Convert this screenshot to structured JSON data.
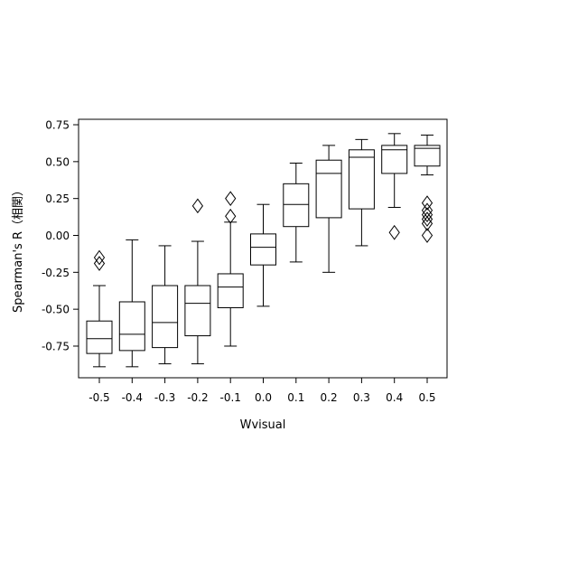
{
  "chart_data": {
    "type": "boxplot",
    "title": "",
    "xlabel": "Wvisual",
    "ylabel": "Spearman's R（相関）",
    "ylim": [
      -0.96,
      0.78
    ],
    "yticks": [
      {
        "value": 0.75,
        "label": "0.75"
      },
      {
        "value": 0.5,
        "label": "0.50"
      },
      {
        "value": 0.25,
        "label": "0.25"
      },
      {
        "value": 0.0,
        "label": "0.00"
      },
      {
        "value": -0.25,
        "label": "-0.25"
      },
      {
        "value": -0.5,
        "label": "-0.50"
      },
      {
        "value": -0.75,
        "label": "-0.75"
      }
    ],
    "categories": [
      "-0.5",
      "-0.4",
      "-0.3",
      "-0.2",
      "-0.1",
      "0.0",
      "0.1",
      "0.2",
      "0.3",
      "0.4",
      "0.5"
    ],
    "boxes": [
      {
        "category": "-0.5",
        "whisker_low": -0.89,
        "q1": -0.8,
        "median": -0.7,
        "q3": -0.58,
        "whisker_high": -0.34,
        "outliers": [
          -0.15,
          -0.19
        ]
      },
      {
        "category": "-0.4",
        "whisker_low": -0.89,
        "q1": -0.78,
        "median": -0.67,
        "q3": -0.45,
        "whisker_high": -0.03,
        "outliers": []
      },
      {
        "category": "-0.3",
        "whisker_low": -0.87,
        "q1": -0.76,
        "median": -0.59,
        "q3": -0.34,
        "whisker_high": -0.07,
        "outliers": []
      },
      {
        "category": "-0.2",
        "whisker_low": -0.87,
        "q1": -0.68,
        "median": -0.46,
        "q3": -0.34,
        "whisker_high": -0.04,
        "outliers": [
          0.2
        ]
      },
      {
        "category": "-0.1",
        "whisker_low": -0.75,
        "q1": -0.49,
        "median": -0.35,
        "q3": -0.26,
        "whisker_high": 0.09,
        "outliers": [
          0.25,
          0.13
        ]
      },
      {
        "category": "0.0",
        "whisker_low": -0.48,
        "q1": -0.2,
        "median": -0.08,
        "q3": 0.01,
        "whisker_high": 0.21,
        "outliers": []
      },
      {
        "category": "0.1",
        "whisker_low": -0.18,
        "q1": 0.06,
        "median": 0.21,
        "q3": 0.35,
        "whisker_high": 0.49,
        "outliers": []
      },
      {
        "category": "0.2",
        "whisker_low": -0.25,
        "q1": 0.12,
        "median": 0.42,
        "q3": 0.51,
        "whisker_high": 0.61,
        "outliers": []
      },
      {
        "category": "0.3",
        "whisker_low": -0.07,
        "q1": 0.18,
        "median": 0.53,
        "q3": 0.58,
        "whisker_high": 0.65,
        "outliers": []
      },
      {
        "category": "0.4",
        "whisker_low": 0.19,
        "q1": 0.42,
        "median": 0.58,
        "q3": 0.61,
        "whisker_high": 0.69,
        "outliers": [
          0.02
        ]
      },
      {
        "category": "0.5",
        "whisker_low": 0.41,
        "q1": 0.47,
        "median": 0.59,
        "q3": 0.61,
        "whisker_high": 0.68,
        "outliers": [
          0.22,
          0.17,
          0.14,
          0.11,
          0.08,
          0.0
        ]
      }
    ],
    "grid": false,
    "legend": "none"
  }
}
